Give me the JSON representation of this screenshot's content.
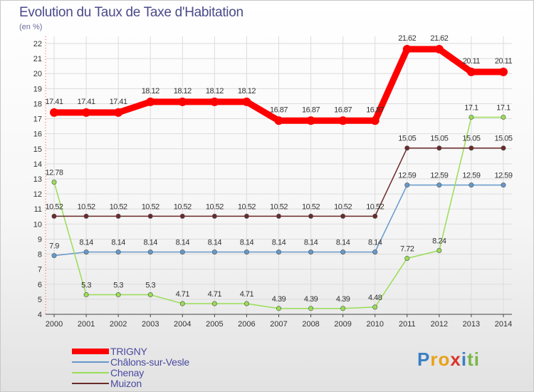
{
  "title": "Evolution du Taux de Taxe d'Habitation",
  "subtitle": "(en %)",
  "chart_data": {
    "type": "line",
    "title": "Evolution du Taux de Taxe d'Habitation",
    "ylabel": "(en %)",
    "x": [
      "2000",
      "2001",
      "2002",
      "2003",
      "2004",
      "2005",
      "2006",
      "2007",
      "2008",
      "2009",
      "2010",
      "2011",
      "2012",
      "2013",
      "2014"
    ],
    "ylim": [
      4,
      22
    ],
    "yticks": [
      4,
      5,
      6,
      7,
      8,
      9,
      10,
      11,
      12,
      13,
      14,
      15,
      16,
      17,
      18,
      19,
      20,
      21,
      22
    ],
    "grid": true,
    "legend_position": "bottom-left",
    "series": [
      {
        "name": "TRIGNY",
        "color": "#ff0000",
        "values": [
          17.41,
          17.41,
          17.41,
          18.12,
          18.12,
          18.12,
          18.12,
          16.87,
          16.87,
          16.87,
          16.87,
          21.62,
          21.62,
          20.11,
          20.11
        ],
        "labels": [
          "17.41",
          "17.41",
          "17.41",
          "18.12",
          "18.12",
          "18.12",
          "18.12",
          "16.87",
          "16.87",
          "16.87",
          "16.87",
          "21.62",
          "21.62",
          "20.11",
          "20.11"
        ]
      },
      {
        "name": "Châlons-sur-Vesle",
        "color": "#6699cc",
        "values": [
          7.9,
          8.14,
          8.14,
          8.14,
          8.14,
          8.14,
          8.14,
          8.14,
          8.14,
          8.14,
          8.14,
          12.59,
          12.59,
          12.59,
          12.59
        ],
        "labels": [
          "7.9",
          "8.14",
          "8.14",
          "8.14",
          "8.14",
          "8.14",
          "8.14",
          "8.14",
          "8.14",
          "8.14",
          "8.14",
          "12.59",
          "12.59",
          "12.59",
          "12.59"
        ]
      },
      {
        "name": "Chenay",
        "color": "#99dd55",
        "values": [
          12.78,
          5.3,
          5.3,
          5.3,
          4.71,
          4.71,
          4.71,
          4.39,
          4.39,
          4.39,
          4.48,
          7.72,
          8.24,
          17.1,
          17.1
        ],
        "labels": [
          "12.78",
          "5.3",
          "5.3",
          "5.3",
          "4.71",
          "4.71",
          "4.71",
          "4.39",
          "4.39",
          "4.39",
          "4.48",
          "7.72",
          "8.24",
          "17.1",
          "17.1"
        ]
      },
      {
        "name": "Muizon",
        "color": "#6b2a2a",
        "values": [
          10.52,
          10.52,
          10.52,
          10.52,
          10.52,
          10.52,
          10.52,
          10.52,
          10.52,
          10.52,
          10.52,
          15.05,
          15.05,
          15.05,
          15.05
        ],
        "labels": [
          "10.52",
          "10.52",
          "10.52",
          "10.52",
          "10.52",
          "10.52",
          "10.52",
          "10.52",
          "10.52",
          "10.52",
          "10.52",
          "15.05",
          "15.05",
          "15.05",
          "15.05"
        ]
      }
    ]
  },
  "logo": {
    "letters": [
      "P",
      "r",
      "o",
      "x",
      "i",
      "t",
      "i"
    ],
    "colors": [
      "#3b7fc4",
      "#e8a21a",
      "#e8a21a",
      "#d9342b",
      "#3b7fc4",
      "#7ab648",
      "#7ab648"
    ]
  }
}
